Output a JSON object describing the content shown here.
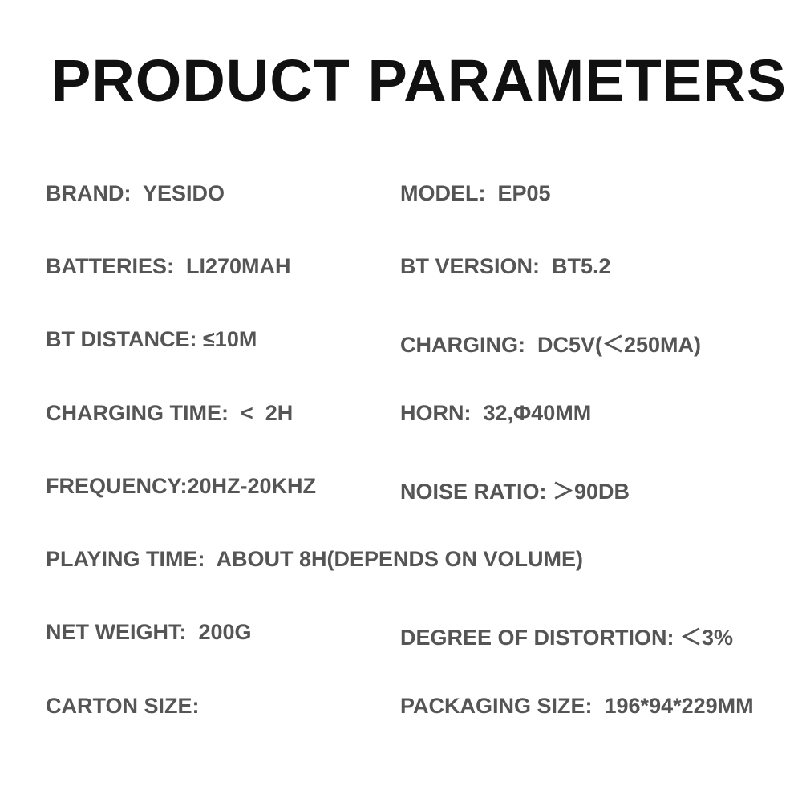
{
  "title": "PRODUCT PARAMETERS",
  "params": [
    "BRAND:  YESIDO",
    "MODEL:  EP05",
    "BATTERIES:  LI270MAH",
    "BT VERSION:  BT5.2",
    "BT DISTANCE: ≤10M",
    "CHARGING:  DC5V(＜250MA)",
    "CHARGING TIME:  <  2H",
    "HORN:  32,Φ40MM",
    "FREQUENCY:20HZ-20KHZ",
    "NOISE RATIO: ＞90DB",
    "PLAYING TIME:  ABOUT 8H(DEPENDS ON VOLUME)",
    "NET WEIGHT:  200G",
    "DEGREE OF DISTORTION: ＜3%",
    "CARTON SIZE:",
    "PACKAGING SIZE:  196*94*229MM"
  ]
}
